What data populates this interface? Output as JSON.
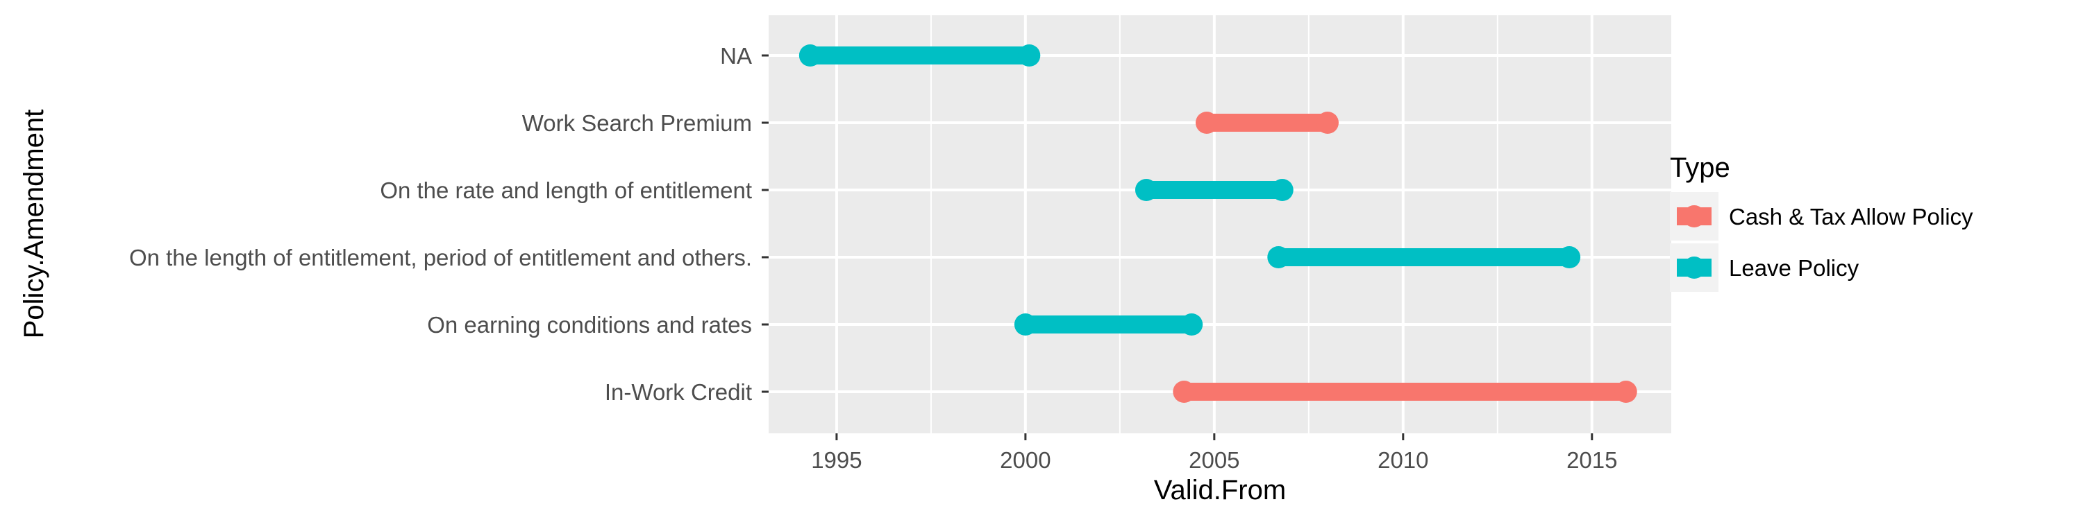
{
  "chart_data": {
    "type": "dumbbell",
    "xlabel": "Valid.From",
    "ylabel": "Policy.Amendment",
    "xlim": [
      1993.2,
      2017.1
    ],
    "x_ticks": [
      1995,
      2000,
      2005,
      2010,
      2015
    ],
    "grid": true,
    "legend": {
      "title": "Type",
      "placement": "right",
      "entries": [
        {
          "name": "Cash & Tax Allow Policy",
          "color": "#F8766D"
        },
        {
          "name": "Leave Policy",
          "color": "#00BFC4"
        }
      ]
    },
    "categories": [
      "NA",
      "Work Search Premium",
      "On the rate and length of entitlement",
      "On the length of entitlement, period of entitlement and others.",
      "On earning conditions and rates",
      "In-Work Credit"
    ],
    "segments": [
      {
        "category": "NA",
        "type": "Leave Policy",
        "start": 1994.3,
        "end": 2000.1
      },
      {
        "category": "Work Search Premium",
        "type": "Cash & Tax Allow Policy",
        "start": 2004.8,
        "end": 2008.0
      },
      {
        "category": "On the rate and length of entitlement",
        "type": "Leave Policy",
        "start": 2003.2,
        "end": 2006.8
      },
      {
        "category": "On the length of entitlement, period of entitlement and others.",
        "type": "Leave Policy",
        "start": 2006.7,
        "end": 2014.4
      },
      {
        "category": "On earning conditions and rates",
        "type": "Leave Policy",
        "start": 2000.0,
        "end": 2004.4
      },
      {
        "category": "In-Work Credit",
        "type": "Cash & Tax Allow Policy",
        "start": 2004.2,
        "end": 2015.9
      }
    ]
  }
}
